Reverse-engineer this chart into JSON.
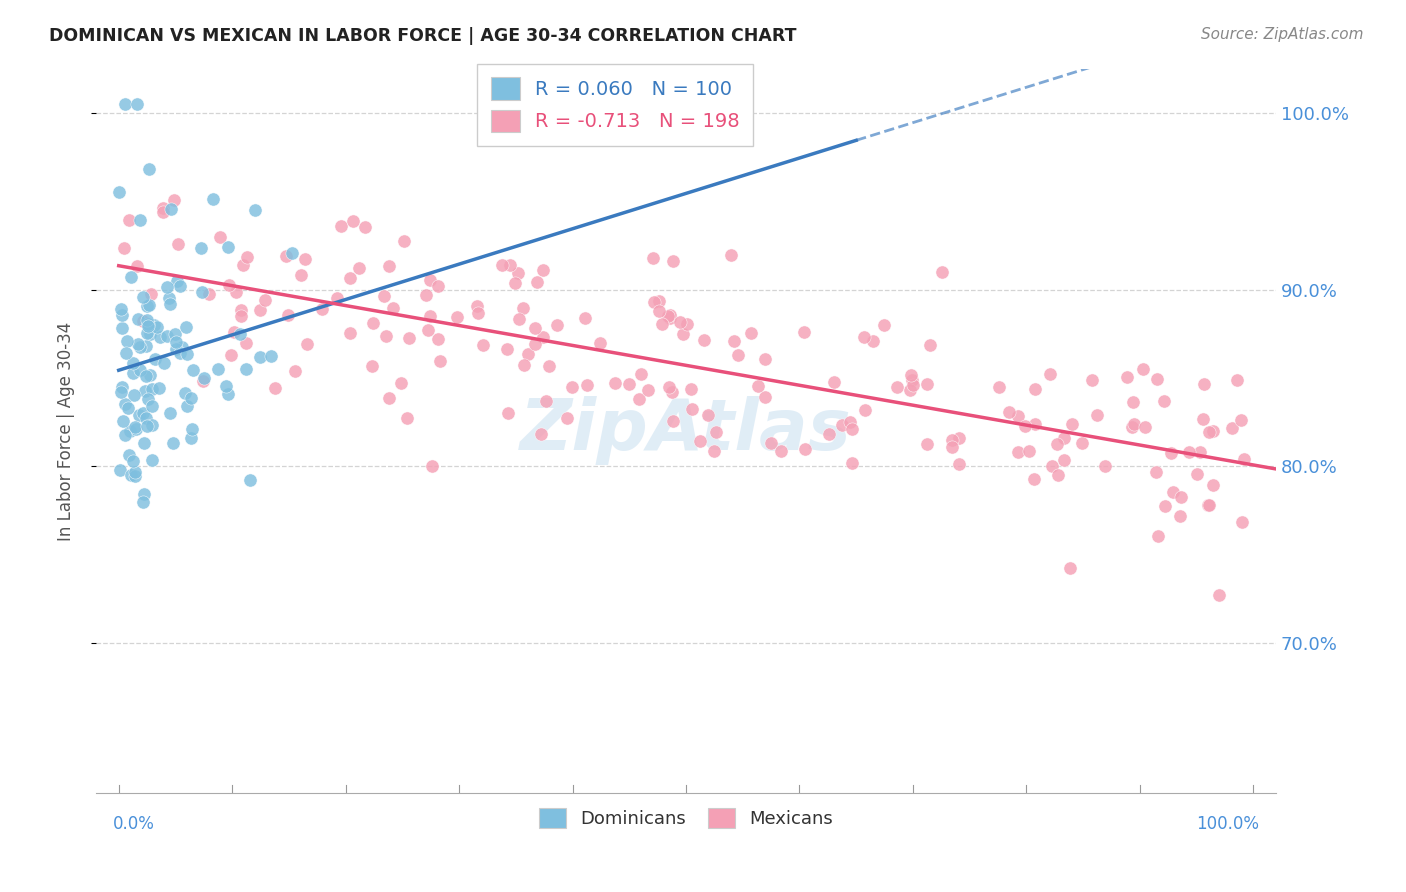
{
  "title": "DOMINICAN VS MEXICAN IN LABOR FORCE | AGE 30-34 CORRELATION CHART",
  "source": "Source: ZipAtlas.com",
  "ylabel": "In Labor Force | Age 30-34",
  "ytick_labels": [
    "70.0%",
    "80.0%",
    "90.0%",
    "100.0%"
  ],
  "ytick_values": [
    0.7,
    0.8,
    0.9,
    1.0
  ],
  "xlim": [
    -0.02,
    1.02
  ],
  "ylim": [
    0.615,
    1.025
  ],
  "dominican_color": "#7fbfdf",
  "mexican_color": "#f4a0b5",
  "trend_dominican_color": "#3a7abf",
  "trend_mexican_color": "#e8507a",
  "background_color": "#ffffff",
  "grid_color": "#d0d0d0",
  "title_color": "#222222",
  "source_color": "#888888",
  "axis_label_color": "#4a90d9",
  "R_dominican": 0.06,
  "N_dominican": 100,
  "R_mexican": -0.713,
  "N_mexican": 198,
  "watermark_color": "#c8dff0",
  "legend_text_color_dom": "#3a7abf",
  "legend_text_color_mex": "#e8507a"
}
